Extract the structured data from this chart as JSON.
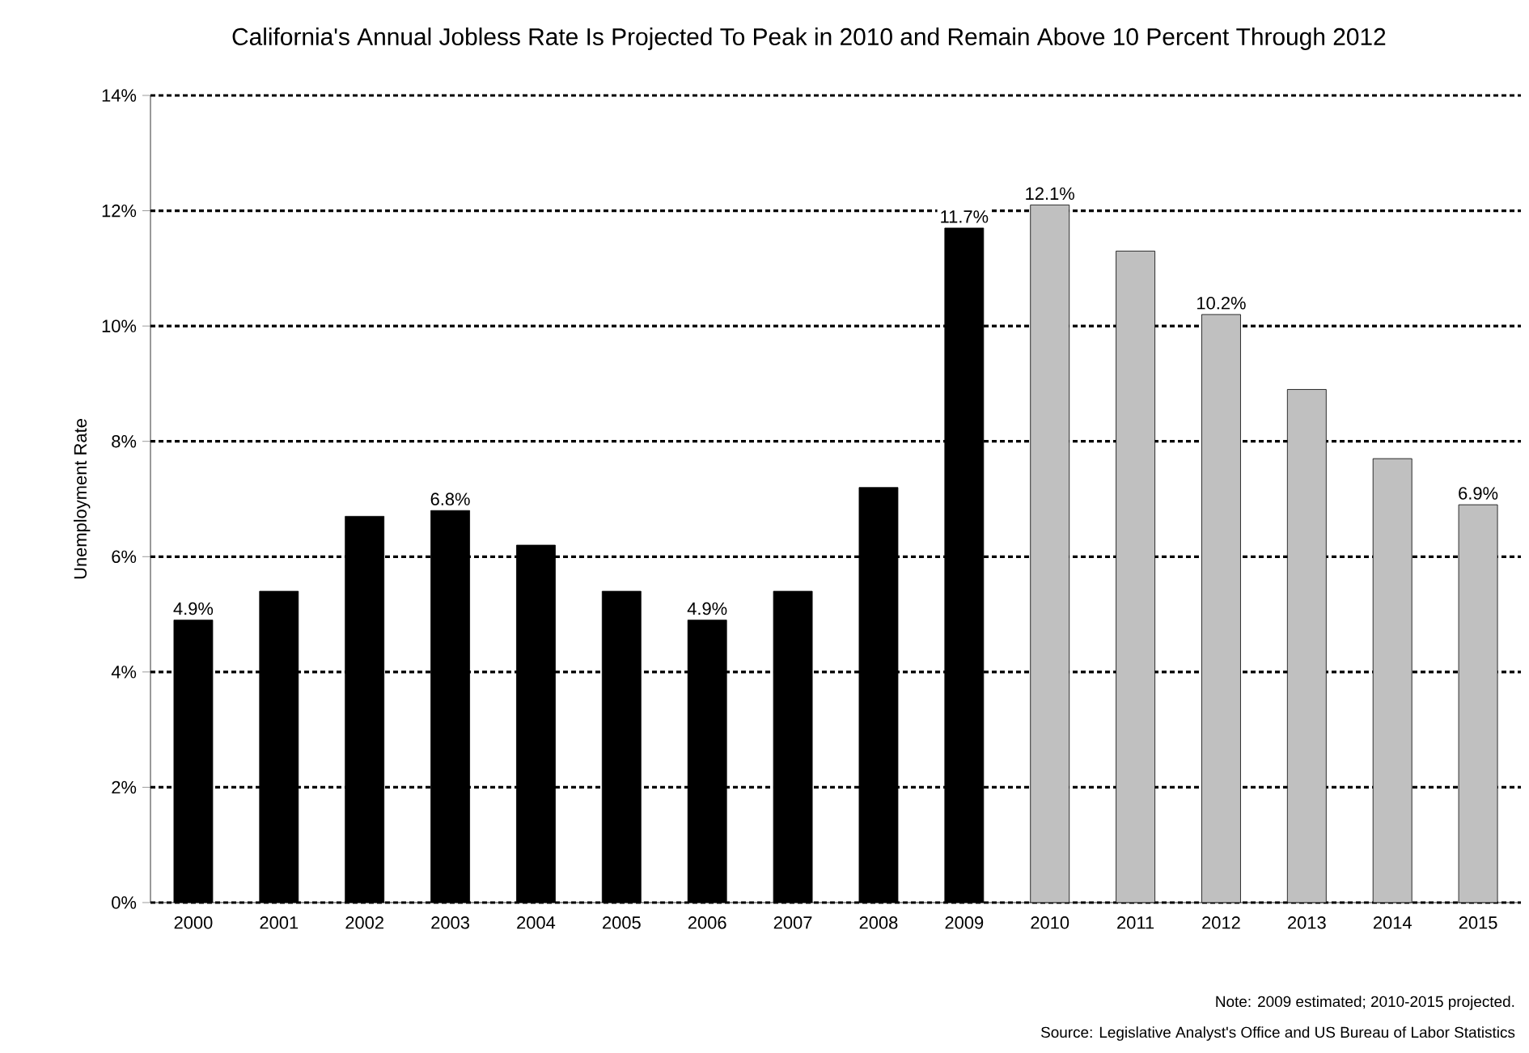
{
  "chart_data": {
    "type": "bar",
    "title": "California's Annual Jobless Rate Is Projected To Peak in 2010 and Remain Above 10 Percent Through 2012",
    "ylabel": "Unemployment Rate",
    "categories": [
      "2000",
      "2001",
      "2002",
      "2003",
      "2004",
      "2005",
      "2006",
      "2007",
      "2008",
      "2009",
      "2010",
      "2011",
      "2012",
      "2013",
      "2014",
      "2015"
    ],
    "values": [
      4.9,
      5.4,
      6.7,
      6.8,
      6.2,
      5.4,
      4.9,
      5.4,
      7.2,
      11.7,
      12.1,
      11.3,
      10.2,
      8.9,
      7.7,
      6.9
    ],
    "colors": [
      "#000000",
      "#000000",
      "#000000",
      "#000000",
      "#000000",
      "#000000",
      "#000000",
      "#000000",
      "#000000",
      "#000000",
      "#c0c0c0",
      "#c0c0c0",
      "#c0c0c0",
      "#c0c0c0",
      "#c0c0c0",
      "#c0c0c0"
    ],
    "value_labels": [
      "4.9%",
      null,
      null,
      "6.8%",
      null,
      null,
      "4.9%",
      null,
      null,
      "11.7%",
      "12.1%",
      null,
      "10.2%",
      null,
      null,
      "6.9%"
    ],
    "ylim": [
      0,
      14
    ],
    "yticks": [
      {
        "value": 0,
        "label": "0%"
      },
      {
        "value": 2,
        "label": "2%"
      },
      {
        "value": 4,
        "label": "4%"
      },
      {
        "value": 6,
        "label": "6%"
      },
      {
        "value": 8,
        "label": "8%"
      },
      {
        "value": 10,
        "label": "10%"
      },
      {
        "value": 12,
        "label": "12%"
      },
      {
        "value": 14,
        "label": "14%"
      }
    ],
    "grid": "y",
    "annotations": [
      "Note: 2009 estimated; 2010-2015 projected.",
      "Source: Legislative Analyst's Office and US Bureau of Labor Statistics"
    ]
  }
}
